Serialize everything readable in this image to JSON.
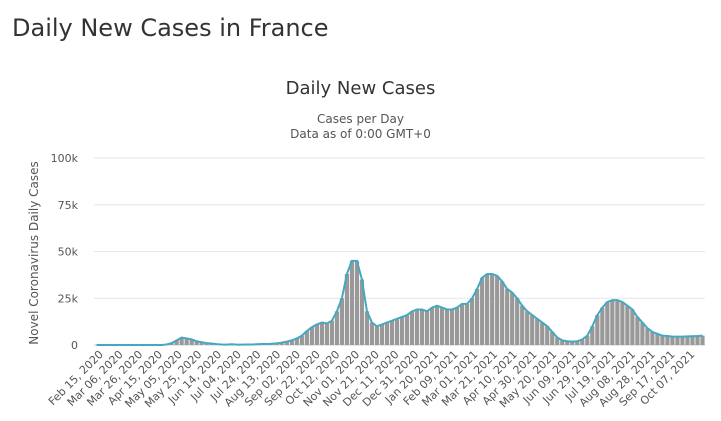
{
  "page": {
    "title": "Daily New Cases in France"
  },
  "chart_data": {
    "type": "bar",
    "title": "Daily New Cases",
    "subtitle_lines": [
      "Cases per Day",
      "Data as of 0:00 GMT+0"
    ],
    "ylabel": "Novel Coronavirus Daily Cases",
    "xlabel": "",
    "ylim": [
      0,
      100000
    ],
    "y_ticks": [
      0,
      25000,
      50000,
      75000,
      100000
    ],
    "y_tick_labels": [
      "0",
      "25k",
      "50k",
      "75k",
      "100k"
    ],
    "x_tick_labels": [
      "Feb 15, 2020",
      "Mar 06, 2020",
      "Mar 26, 2020",
      "Apr 15, 2020",
      "May 05, 2020",
      "May 25, 2020",
      "Jun 14, 2020",
      "Jul 04, 2020",
      "Jul 24, 2020",
      "Aug 13, 2020",
      "Sep 02, 2020",
      "Sep 22, 2020",
      "Oct 12, 2020",
      "Nov 01, 2020",
      "Nov 21, 2020",
      "Dec 11, 2020",
      "Dec 31, 2020",
      "Jan 20, 2021",
      "Feb 09, 2021",
      "Mar 01, 2021",
      "Mar 21, 2021",
      "Apr 10, 2021",
      "Apr 30, 2021",
      "May 20, 2021",
      "Jun 09, 2021",
      "Jun 29, 2021",
      "Jul 19, 2021",
      "Aug 08, 2021",
      "Aug 28, 2021",
      "Sep 17, 2021",
      "Oct 07, 2021"
    ],
    "grid": true,
    "legend": "none",
    "colors": {
      "bars": "#999999",
      "moving_average": "#44a8c1",
      "grid": "#e6e6e6"
    },
    "series": [
      {
        "values": [
          0,
          0,
          0,
          0,
          0,
          0,
          0,
          0,
          0,
          0,
          0,
          0,
          0,
          0,
          300,
          1000,
          2500,
          4000,
          3500,
          3000,
          2000,
          1500,
          1000,
          800,
          500,
          300,
          200,
          400,
          200,
          200,
          300,
          300,
          400,
          500,
          500,
          700,
          900,
          1300,
          1800,
          2500,
          3500,
          5000,
          7500,
          9500,
          11000,
          12000,
          11500,
          13000,
          18000,
          25000,
          38000,
          45000,
          45000,
          35000,
          18000,
          12000,
          10000,
          11000,
          12000,
          13000,
          14000,
          15000,
          16000,
          18000,
          19000,
          19000,
          18000,
          20000,
          21000,
          20000,
          19000,
          19000,
          20000,
          22000,
          22000,
          25000,
          30000,
          36000,
          38000,
          38000,
          37000,
          34000,
          30000,
          28000,
          25000,
          21000,
          18000,
          16000,
          14000,
          12000,
          10000,
          7000,
          4000,
          2500,
          2000,
          1800,
          2000,
          3000,
          5000,
          10000,
          16000,
          20000,
          23000,
          24000,
          24000,
          23000,
          21000,
          19000,
          15000,
          12000,
          9000,
          7000,
          6000,
          5000,
          4800,
          4500,
          4500,
          4500,
          4600,
          4700,
          4800,
          5000
        ]
      },
      {
        "values": [
          0,
          0,
          0,
          0,
          0,
          0,
          0,
          0,
          0,
          0,
          0,
          0,
          0,
          0,
          300,
          1000,
          2500,
          4000,
          3500,
          3000,
          2000,
          1500,
          1000,
          800,
          500,
          300,
          200,
          400,
          200,
          200,
          300,
          300,
          400,
          500,
          500,
          700,
          900,
          1300,
          1800,
          2500,
          3500,
          5000,
          7500,
          9500,
          11000,
          12000,
          11500,
          13000,
          18000,
          25000,
          38000,
          45000,
          45000,
          35000,
          18000,
          12000,
          10000,
          11000,
          12000,
          13000,
          14000,
          15000,
          16000,
          18000,
          19000,
          19000,
          18000,
          20000,
          21000,
          20000,
          19000,
          19000,
          20000,
          22000,
          22000,
          25000,
          30000,
          36000,
          38000,
          38000,
          37000,
          34000,
          30000,
          28000,
          25000,
          21000,
          18000,
          16000,
          14000,
          12000,
          10000,
          7000,
          4000,
          2500,
          2000,
          1800,
          2000,
          3000,
          5000,
          10000,
          16000,
          20000,
          23000,
          24000,
          24000,
          23000,
          21000,
          19000,
          15000,
          12000,
          9000,
          7000,
          6000,
          5000,
          4800,
          4500,
          4500,
          4500,
          4600,
          4700,
          4800,
          5000
        ]
      }
    ]
  }
}
